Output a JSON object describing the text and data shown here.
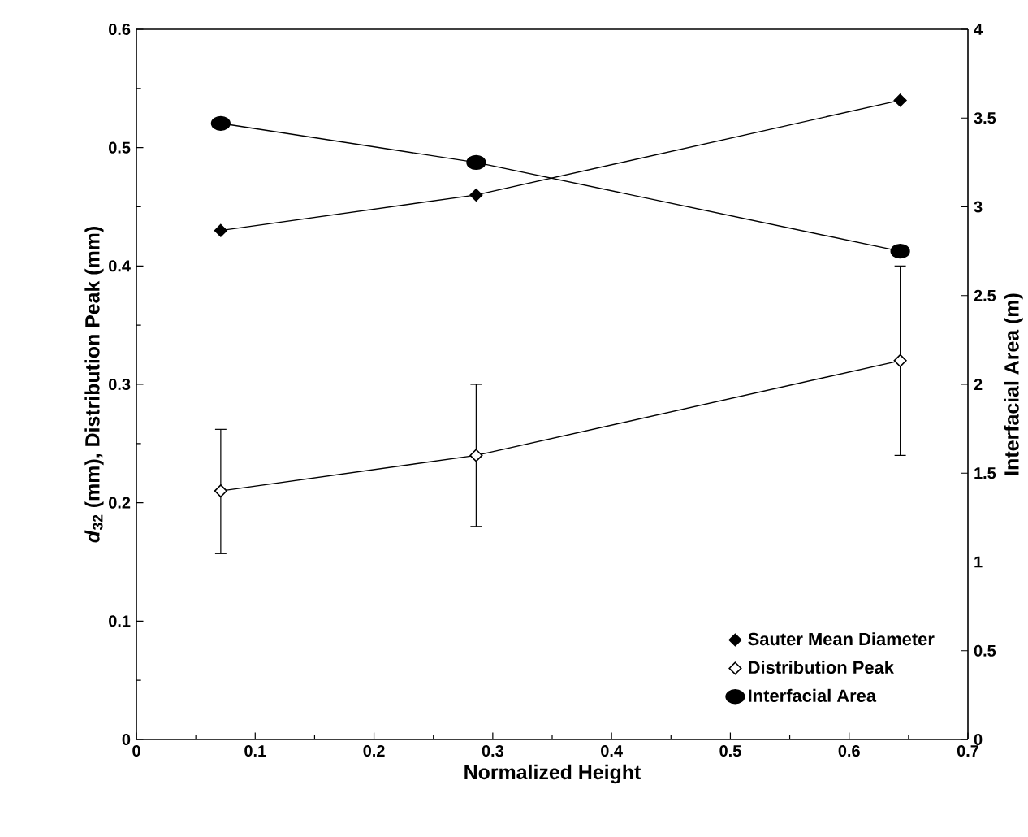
{
  "chart_data": {
    "type": "line",
    "xlabel": "Normalized Height",
    "ylabel": "*d*$_{32}$ (mm), Distribution Peak (mm)",
    "y2label": "Interfacial Area (m)",
    "xlim": [
      0,
      0.7
    ],
    "xticks": [
      0,
      0.1,
      0.2,
      0.3,
      0.4,
      0.5,
      0.6,
      0.7
    ],
    "ylim": [
      0,
      0.6
    ],
    "yticks": [
      0,
      0.1,
      0.2,
      0.3,
      0.4,
      0.5,
      0.6
    ],
    "y2lim": [
      0,
      4
    ],
    "y2ticks": [
      0,
      0.5,
      1,
      1.5,
      2,
      2.5,
      3,
      3.5,
      4
    ],
    "legend": "bottom right",
    "grid": false,
    "series": [
      {
        "name": "Sauter Mean Diameter",
        "color": "#000000",
        "marker": "diamond",
        "x": [
          0.071,
          0.286,
          0.643
        ],
        "values": [
          0.43,
          0.46,
          0.54
        ]
      },
      {
        "name": "Distribution Peak",
        "color": "#ffffff",
        "marker": "diamond",
        "x": [
          0.071,
          0.286,
          0.643
        ],
        "values": [
          0.21,
          0.24,
          0.32
        ],
        "errors": [
          [
            0.157,
            0.262
          ],
          [
            0.18,
            0.3
          ],
          [
            0.24,
            0.4
          ]
        ]
      },
      {
        "name": "Interfacial Area",
        "color": "#000000",
        "marker": "circle",
        "axis": "y2",
        "x": [
          0.071,
          0.286,
          0.643
        ],
        "values": [
          3.47,
          3.25,
          2.75
        ]
      }
    ]
  }
}
